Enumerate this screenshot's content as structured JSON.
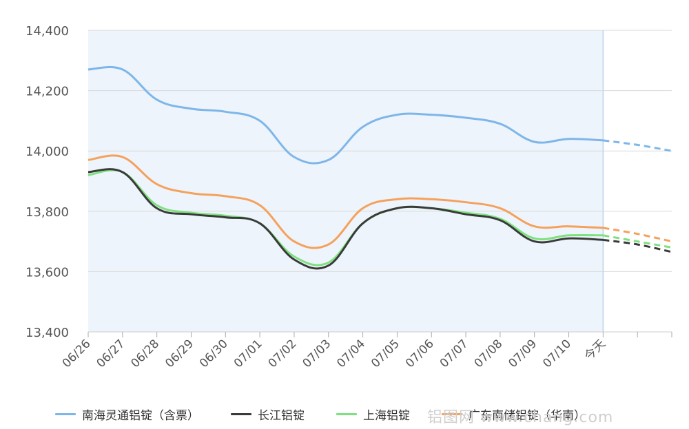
{
  "chart_data": {
    "type": "line",
    "categories": [
      "06/26",
      "06/27",
      "06/28",
      "06/29",
      "06/30",
      "07/01",
      "07/02",
      "07/03",
      "07/04",
      "07/05",
      "07/06",
      "07/07",
      "07/08",
      "07/09",
      "07/10",
      "今天",
      "",
      ""
    ],
    "forecast_start_index": 15,
    "y_ticks": [
      "14,400",
      "14,200",
      "14,000",
      "13,800",
      "13,600",
      "13,400"
    ],
    "ylim": [
      13400,
      14400
    ],
    "grid": true,
    "legend_position": "bottom",
    "shaded_region": "history",
    "series": [
      {
        "name": "南海灵通铝锭（含票）",
        "color": "#7eb6ea",
        "values": [
          14270,
          14270,
          14170,
          14140,
          14130,
          14100,
          13980,
          13970,
          14080,
          14120,
          14120,
          14110,
          14090,
          14030,
          14040,
          14035,
          14020,
          14000
        ]
      },
      {
        "name": "长江铝锭",
        "color": "#3a3a3a",
        "values": [
          13930,
          13930,
          13810,
          13790,
          13780,
          13760,
          13640,
          13620,
          13760,
          13810,
          13810,
          13790,
          13770,
          13700,
          13710,
          13705,
          13690,
          13665
        ]
      },
      {
        "name": "上海铝锭",
        "color": "#7ee07e",
        "values": [
          13920,
          13930,
          13820,
          13795,
          13785,
          13760,
          13650,
          13630,
          13760,
          13810,
          13810,
          13795,
          13775,
          13710,
          13720,
          13720,
          13700,
          13680
        ]
      },
      {
        "name": "广东南储铝锭（华南）",
        "color": "#f5a15b",
        "values": [
          13970,
          13980,
          13890,
          13860,
          13850,
          13820,
          13700,
          13690,
          13810,
          13840,
          13840,
          13830,
          13810,
          13750,
          13750,
          13745,
          13725,
          13700
        ]
      }
    ]
  },
  "watermark": "铝图网 www.chang.com"
}
